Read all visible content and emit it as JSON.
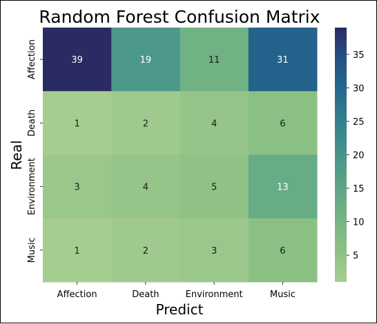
{
  "chart_data": {
    "type": "heatmap",
    "title": "Random Forest Confusion Matrix",
    "xlabel": "Predict",
    "ylabel": "Real",
    "x_categories": [
      "Affection",
      "Death",
      "Environment",
      "Music"
    ],
    "y_categories": [
      "Affection",
      "Death",
      "Environment",
      "Music"
    ],
    "values": [
      [
        39,
        19,
        11,
        31
      ],
      [
        1,
        2,
        4,
        6
      ],
      [
        3,
        4,
        5,
        13
      ],
      [
        1,
        2,
        3,
        6
      ]
    ],
    "colorbar": {
      "min": 1,
      "max": 39,
      "ticks": [
        5,
        10,
        15,
        20,
        25,
        30,
        35
      ],
      "colormap": "crest"
    },
    "colors": {
      "low": "#96c882",
      "high": "#2a2b63",
      "text_dark": "#1a1a1a",
      "text_light": "#ffffff"
    }
  }
}
